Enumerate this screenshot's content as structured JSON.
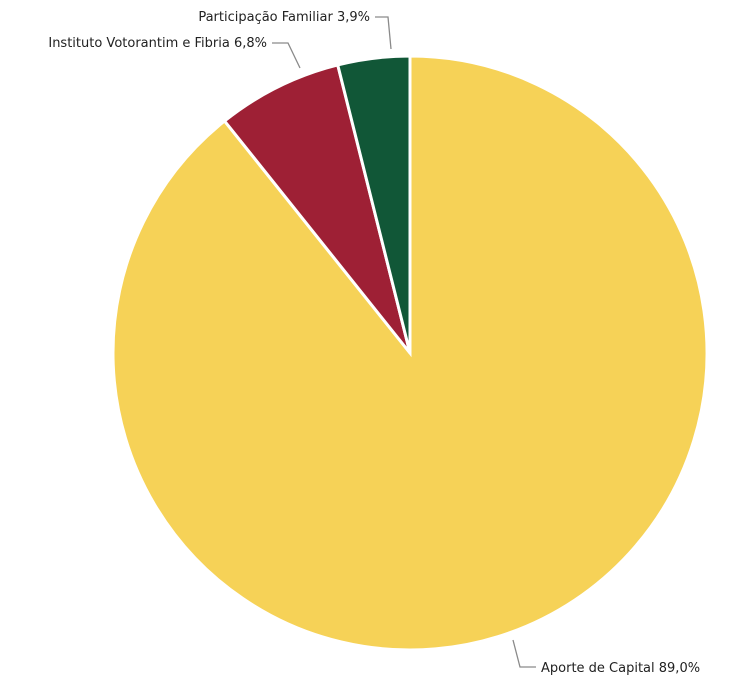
{
  "chart_data": {
    "type": "pie",
    "title": "",
    "start": "top",
    "direction": "clockwise",
    "slices": [
      {
        "label": "Aporte de Capital",
        "value": 89.0,
        "value_text": "89,0%",
        "color": "#F6D257"
      },
      {
        "label": "Instituto Votorantim e Fibria",
        "value": 6.8,
        "value_text": "6,8%",
        "color": "#9E2035"
      },
      {
        "label": "Participação Familiar",
        "value": 3.9,
        "value_text": "3,9%",
        "color": "#115737"
      }
    ]
  }
}
